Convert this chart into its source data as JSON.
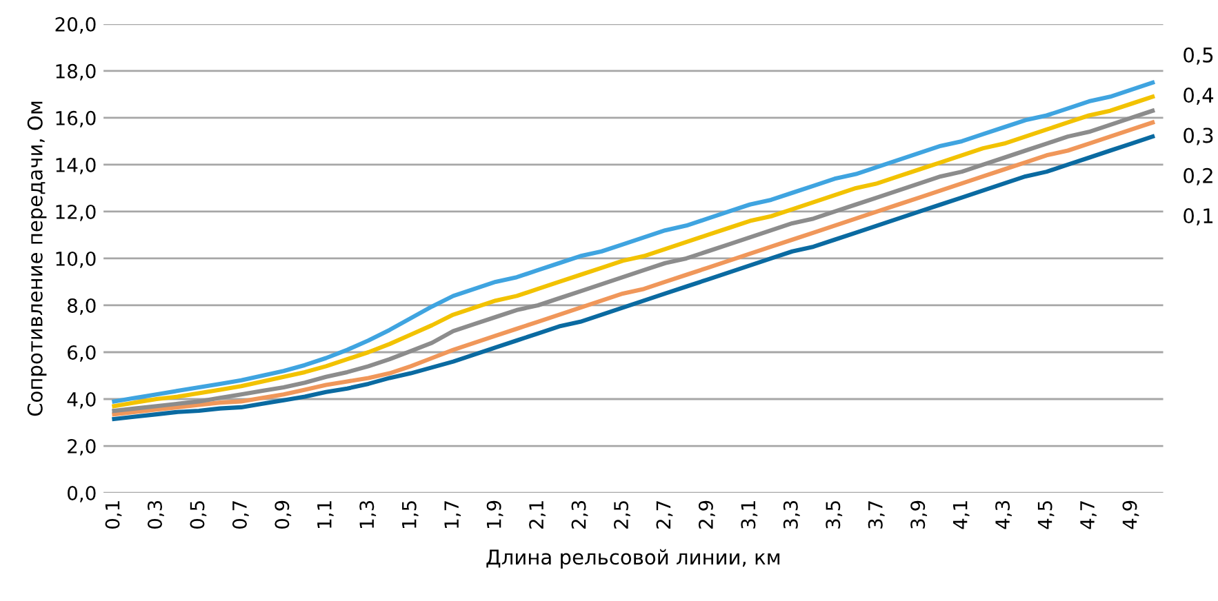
{
  "chart_data": {
    "type": "line",
    "xlabel": "Длина рельсовой линии, км",
    "ylabel": "Сопротивление передачи, Ом",
    "categories": [
      "0,1",
      null,
      "0,3",
      null,
      "0,5",
      null,
      "0,7",
      null,
      "0,9",
      null,
      "1,1",
      null,
      "1,3",
      null,
      "1,5",
      null,
      "1,7",
      null,
      "1,9",
      null,
      "2,1",
      null,
      "2,3",
      null,
      "2,5",
      null,
      "2,7",
      null,
      "2,9",
      null,
      "3,1",
      null,
      "3,3",
      null,
      "3,5",
      null,
      "3,7",
      null,
      "3,9",
      null,
      "4,1",
      null,
      "4,3",
      null,
      "4,5",
      null,
      "4,7",
      null,
      "4,9",
      null
    ],
    "series": [
      {
        "name": "0,1",
        "color": "#0a6aa1",
        "values": [
          3.15,
          3.25,
          3.35,
          3.45,
          3.5,
          3.6,
          3.65,
          3.8,
          3.95,
          4.1,
          4.3,
          4.45,
          4.65,
          4.9,
          5.1,
          5.35,
          5.6,
          5.9,
          6.2,
          6.5,
          6.8,
          7.1,
          7.3,
          7.6,
          7.9,
          8.2,
          8.5,
          8.8,
          9.1,
          9.4,
          9.7,
          10.0,
          10.3,
          10.5,
          10.8,
          11.1,
          11.4,
          11.7,
          12.0,
          12.3,
          12.6,
          12.9,
          13.2,
          13.5,
          13.7,
          14.0,
          14.3,
          14.6,
          14.9,
          15.2
        ]
      },
      {
        "name": "0,2",
        "color": "#f0975a",
        "values": [
          3.35,
          3.45,
          3.55,
          3.65,
          3.75,
          3.85,
          3.9,
          4.05,
          4.2,
          4.4,
          4.6,
          4.75,
          4.9,
          5.1,
          5.4,
          5.75,
          6.1,
          6.4,
          6.7,
          7.0,
          7.3,
          7.6,
          7.9,
          8.2,
          8.5,
          8.7,
          9.0,
          9.3,
          9.6,
          9.9,
          10.2,
          10.5,
          10.8,
          11.1,
          11.4,
          11.7,
          12.0,
          12.3,
          12.6,
          12.9,
          13.2,
          13.5,
          13.8,
          14.1,
          14.4,
          14.6,
          14.9,
          15.2,
          15.5,
          15.8
        ]
      },
      {
        "name": "0,3",
        "color": "#8c8c8c",
        "values": [
          3.5,
          3.6,
          3.7,
          3.8,
          3.9,
          4.05,
          4.2,
          4.35,
          4.5,
          4.7,
          4.95,
          5.15,
          5.4,
          5.7,
          6.05,
          6.4,
          6.9,
          7.2,
          7.5,
          7.8,
          8.0,
          8.3,
          8.6,
          8.9,
          9.2,
          9.5,
          9.8,
          10.0,
          10.3,
          10.6,
          10.9,
          11.2,
          11.5,
          11.7,
          12.0,
          12.3,
          12.6,
          12.9,
          13.2,
          13.5,
          13.7,
          14.0,
          14.3,
          14.6,
          14.9,
          15.2,
          15.4,
          15.7,
          16.0,
          16.3
        ]
      },
      {
        "name": "0,4",
        "color": "#f2c200",
        "values": [
          3.7,
          3.85,
          4.0,
          4.1,
          4.25,
          4.4,
          4.55,
          4.75,
          4.95,
          5.15,
          5.4,
          5.7,
          6.0,
          6.35,
          6.75,
          7.15,
          7.6,
          7.9,
          8.2,
          8.4,
          8.7,
          9.0,
          9.3,
          9.6,
          9.9,
          10.1,
          10.4,
          10.7,
          11.0,
          11.3,
          11.6,
          11.8,
          12.1,
          12.4,
          12.7,
          13.0,
          13.2,
          13.5,
          13.8,
          14.1,
          14.4,
          14.7,
          14.9,
          15.2,
          15.5,
          15.8,
          16.1,
          16.3,
          16.6,
          16.9
        ]
      },
      {
        "name": "0,5",
        "color": "#3fa4e0",
        "values": [
          3.9,
          4.05,
          4.2,
          4.35,
          4.5,
          4.65,
          4.8,
          5.0,
          5.2,
          5.45,
          5.75,
          6.1,
          6.5,
          6.95,
          7.45,
          7.95,
          8.4,
          8.7,
          9.0,
          9.2,
          9.5,
          9.8,
          10.1,
          10.3,
          10.6,
          10.9,
          11.2,
          11.4,
          11.7,
          12.0,
          12.3,
          12.5,
          12.8,
          13.1,
          13.4,
          13.6,
          13.9,
          14.2,
          14.5,
          14.8,
          15.0,
          15.3,
          15.6,
          15.9,
          16.1,
          16.4,
          16.7,
          16.9,
          17.2,
          17.5
        ]
      }
    ],
    "ylim": [
      0,
      20
    ],
    "yticks": [
      {
        "value": 0,
        "label": "0,0"
      },
      {
        "value": 2,
        "label": "2,0"
      },
      {
        "value": 4,
        "label": "4,0"
      },
      {
        "value": 6,
        "label": "6,0"
      },
      {
        "value": 8,
        "label": "8,0"
      },
      {
        "value": 10,
        "label": "10,0"
      },
      {
        "value": 12,
        "label": "12,0"
      },
      {
        "value": 14,
        "label": "14,0"
      },
      {
        "value": 16,
        "label": "16,0"
      },
      {
        "value": 18,
        "label": "18,0"
      },
      {
        "value": 20,
        "label": "20,0"
      }
    ],
    "grid": "y",
    "legend": false,
    "marker": "none",
    "line_style": "solid"
  }
}
